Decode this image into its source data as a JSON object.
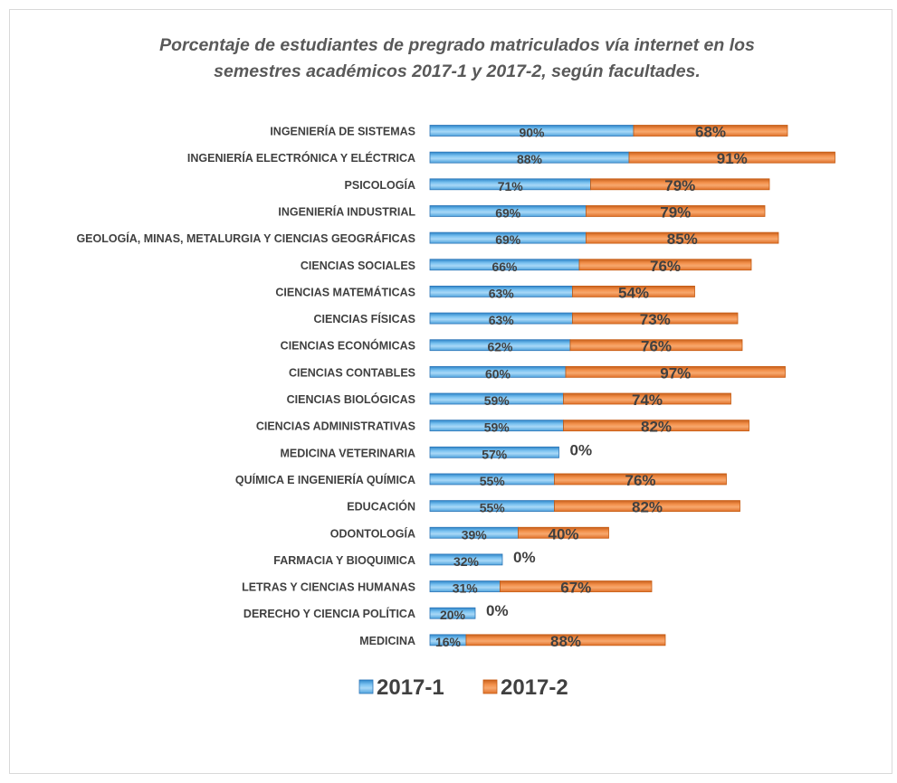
{
  "chart_data": {
    "type": "bar",
    "orientation": "horizontal",
    "stacked": true,
    "title": "Porcentaje de estudiantes de pregrado matriculados vía internet en los semestres académicos 2017-1 y 2017-2, según facultades.",
    "title_lines": [
      "Porcentaje de estudiantes de pregrado matriculados vía internet en los",
      "semestres académicos 2017-1 y 2017-2, según facultades."
    ],
    "categories": [
      "INGENIERÍA DE SISTEMAS",
      "INGENIERÍA ELECTRÓNICA Y ELÉCTRICA",
      "PSICOLOGÍA",
      "INGENIERÍA INDUSTRIAL",
      "GEOLOGÍA, MINAS, METALURGIA Y CIENCIAS GEOGRÁFICAS",
      "CIENCIAS SOCIALES",
      "CIENCIAS MATEMÁTICAS",
      "CIENCIAS FÍSICAS",
      "CIENCIAS ECONÓMICAS",
      "CIENCIAS CONTABLES",
      "CIENCIAS BIOLÓGICAS",
      "CIENCIAS ADMINISTRATIVAS",
      "MEDICINA VETERINARIA",
      "QUÍMICA E INGENIERÍA QUÍMICA",
      "EDUCACIÓN",
      "ODONTOLOGÍA",
      "FARMACIA Y BIOQUIMICA",
      "LETRAS Y CIENCIAS HUMANAS",
      "DERECHO Y CIENCIA POLÍTICA",
      "MEDICINA"
    ],
    "series": [
      {
        "name": "2017-1",
        "color": "#5fb0e6",
        "values": [
          90,
          88,
          71,
          69,
          69,
          66,
          63,
          63,
          62,
          60,
          59,
          59,
          57,
          55,
          55,
          39,
          32,
          31,
          20,
          16
        ],
        "labels": [
          "90%",
          "88%",
          "71%",
          "69%",
          "69%",
          "66%",
          "63%",
          "63%",
          "62%",
          "60%",
          "59%",
          "59%",
          "57%",
          "55%",
          "55%",
          "39%",
          "32%",
          "31%",
          "20%",
          "16%"
        ]
      },
      {
        "name": "2017-2",
        "color": "#ed7d31",
        "values": [
          68,
          91,
          79,
          79,
          85,
          76,
          54,
          73,
          76,
          97,
          74,
          82,
          0,
          76,
          82,
          40,
          0,
          67,
          0,
          88
        ],
        "labels": [
          "68%",
          "91%",
          "79%",
          "79%",
          "85%",
          "76%",
          "54%",
          "73%",
          "76%",
          "97%",
          "74%",
          "82%",
          "0%",
          "76%",
          "82%",
          "40%",
          "0%",
          "67%",
          "0%",
          "88%"
        ]
      }
    ],
    "legend": {
      "position": "bottom",
      "entries": [
        "2017-1",
        "2017-2"
      ]
    },
    "grid": false,
    "xaxis_visible": false,
    "text_color": "#404040",
    "title_color": "#595959"
  }
}
